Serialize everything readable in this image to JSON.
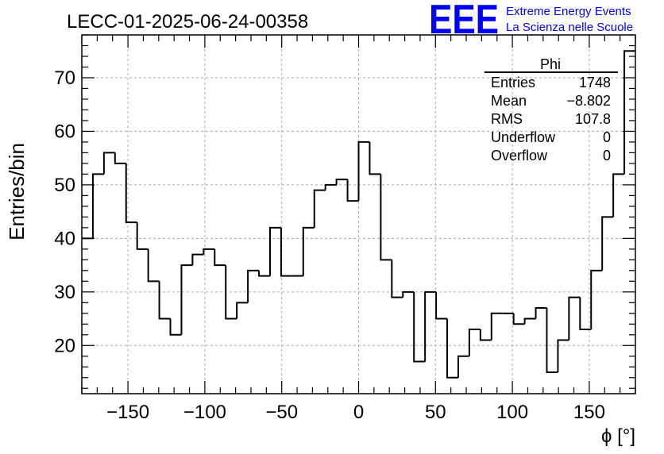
{
  "header": {
    "run_title": "LECC-01-2025-06-24-00358",
    "logo_text": "EEE",
    "logo_line1": "Extreme Energy Events",
    "logo_line2": "La Scienza nelle Scuole",
    "brand_color": "#0000ff"
  },
  "stats": {
    "title": "Phi",
    "rows": [
      {
        "label": "Entries",
        "value": "1748"
      },
      {
        "label": "Mean",
        "value": "−8.802"
      },
      {
        "label": "RMS",
        "value": "107.8"
      },
      {
        "label": "Underflow",
        "value": "0"
      },
      {
        "label": "Overflow",
        "value": "0"
      }
    ]
  },
  "chart_data": {
    "type": "histogram",
    "xlabel": "ϕ [°]",
    "ylabel": "Entries/bin",
    "xlim": [
      -180,
      180
    ],
    "ylim": [
      11,
      78
    ],
    "grid": true,
    "bin_width": 7.2,
    "bin_edges_start": -180,
    "values": [
      40,
      52,
      56,
      54,
      43,
      38,
      32,
      25,
      22,
      35,
      37,
      38,
      35,
      25,
      28,
      34,
      33,
      42,
      33,
      33,
      42,
      49,
      50,
      51,
      47,
      58,
      52,
      36,
      29,
      30,
      17,
      30,
      25,
      14,
      18,
      23,
      21,
      26,
      26,
      24,
      25,
      27,
      15,
      21,
      29,
      23,
      34,
      44,
      52,
      75
    ],
    "x_ticks": [
      {
        "value": -150,
        "label": "−150"
      },
      {
        "value": -100,
        "label": "−100"
      },
      {
        "value": -50,
        "label": "−50"
      },
      {
        "value": 0,
        "label": "0"
      },
      {
        "value": 50,
        "label": "50"
      },
      {
        "value": 100,
        "label": "100"
      },
      {
        "value": 150,
        "label": "150"
      }
    ],
    "y_ticks": [
      {
        "value": 20,
        "label": "20"
      },
      {
        "value": 30,
        "label": "30"
      },
      {
        "value": 40,
        "label": "40"
      },
      {
        "value": 50,
        "label": "50"
      },
      {
        "value": 60,
        "label": "60"
      },
      {
        "value": 70,
        "label": "70"
      }
    ],
    "line_color": "#000000",
    "grid_color": "#aaaaaa"
  }
}
